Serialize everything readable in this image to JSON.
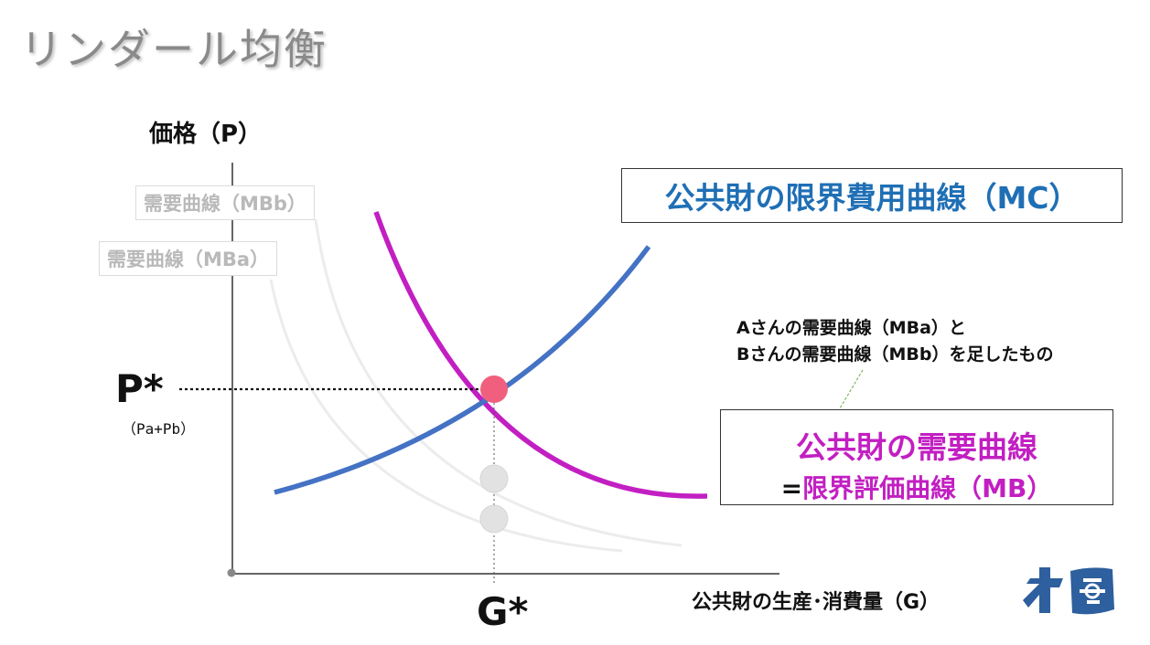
{
  "title": "リンダール均衡",
  "y_axis_label": "価格（P）",
  "x_axis_label": "公共財の生産･消費量（G）",
  "demand_b_label": "需要曲線（MBb）",
  "demand_a_label": "需要曲線（MBa）",
  "mc_label": "公共財の限界費用曲線（MC）",
  "note_line1": "Aさんの需要曲線（MBa）と",
  "note_line2": "Bさんの需要曲線（MBb）を足したもの",
  "mb_line1": "公共財の需要曲線",
  "mb_eq": "=",
  "mb_line2": "限界評価曲線（MB）",
  "p_star": "P*",
  "p_star_sub": "（Pa+Pb）",
  "g_star": "G*",
  "colors": {
    "mc": "#4472c4",
    "mb": "#c21fc2",
    "mc_text": "#1f6fb5",
    "equilibrium": "#f0607e",
    "individual_points": "#e2e2e2",
    "individual_curves": "#ececec",
    "logo": "#2e5f9e"
  },
  "icons": {
    "logo": "brand-logo-icon"
  }
}
